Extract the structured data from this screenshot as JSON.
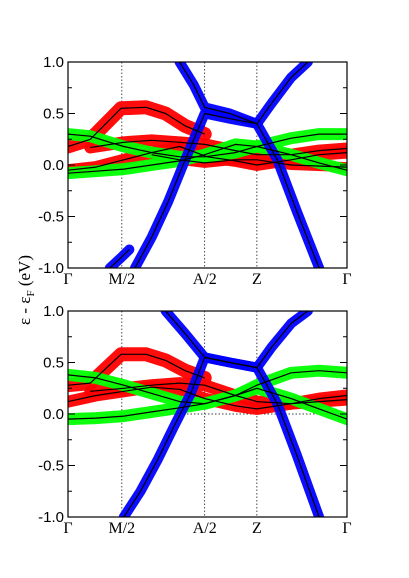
{
  "chart_data": [
    {
      "type": "line",
      "panel": "top",
      "ylabel_main": "ε - ε",
      "ylabel_sub": "F",
      "ylabel_unit": " (eV)",
      "ylim": [
        -1.0,
        1.0
      ],
      "yticks": [
        "1.0",
        "0.5",
        "0.0",
        "-0.5",
        "-1.0"
      ],
      "ytick_values": [
        1.0,
        0.5,
        0.0,
        -0.5,
        -1.0
      ],
      "kpoints": [
        "Γ",
        "M/2",
        "A/2",
        "Z",
        "Γ"
      ],
      "kpoint_positions": [
        0.0,
        0.193,
        0.49,
        0.677,
        1.0
      ],
      "grid": "dotted vertical lines at k-points, dotted horizontal line at 0",
      "colors": {
        "black": "#000000",
        "red": "#ff0000",
        "green": "#00ff00",
        "blue": "#0000ff"
      },
      "series": [
        {
          "color": "red",
          "width": 14,
          "x": [
            0,
            0.08,
            0.19,
            0.28,
            0.35,
            0.42,
            0.49
          ],
          "y": [
            0.18,
            0.25,
            0.55,
            0.56,
            0.5,
            0.38,
            0.3
          ]
        },
        {
          "color": "red",
          "width": 12,
          "x": [
            0,
            0.1,
            0.2,
            0.3,
            0.4,
            0.5,
            0.6,
            0.677,
            0.8,
            0.9,
            1.0
          ],
          "y": [
            -0.05,
            -0.02,
            0.05,
            0.12,
            0.18,
            0.08,
            0.04,
            0.0,
            0.05,
            0.1,
            0.12
          ]
        },
        {
          "color": "red",
          "width": 12,
          "x": [
            0.08,
            0.2,
            0.3,
            0.4,
            0.49,
            0.6,
            0.677,
            0.8,
            0.9,
            1.0
          ],
          "y": [
            0.17,
            0.22,
            0.24,
            0.22,
            0.2,
            0.14,
            0.1,
            0.1,
            0.14,
            0.16
          ]
        },
        {
          "color": "red",
          "width": 10,
          "x": [
            0.3,
            0.4,
            0.49,
            0.6,
            0.677,
            0.8,
            1.0
          ],
          "y": [
            0.1,
            0.05,
            0.02,
            0.05,
            0.05,
            0.0,
            -0.02
          ]
        },
        {
          "color": "green",
          "width": 12,
          "x": [
            0,
            0.08,
            0.15,
            0.2,
            0.3,
            0.4,
            0.49,
            0.6,
            0.677,
            0.8,
            0.9,
            1.0
          ],
          "y": [
            0.3,
            0.28,
            0.22,
            0.18,
            0.12,
            0.08,
            0.08,
            0.12,
            0.18,
            0.26,
            0.3,
            0.3
          ]
        },
        {
          "color": "green",
          "width": 12,
          "x": [
            0,
            0.1,
            0.2,
            0.3,
            0.4,
            0.49,
            0.6,
            0.677,
            0.8,
            0.9,
            1.0
          ],
          "y": [
            -0.08,
            -0.06,
            -0.04,
            0.0,
            0.04,
            0.1,
            0.2,
            0.18,
            0.1,
            0.02,
            -0.05
          ]
        },
        {
          "color": "blue",
          "width": 10,
          "x": [
            0.24,
            0.3,
            0.36,
            0.42,
            0.49,
            0.58,
            0.677
          ],
          "y": [
            -1.0,
            -0.7,
            -0.35,
            0.05,
            0.5,
            0.45,
            0.4
          ]
        },
        {
          "color": "blue",
          "width": 10,
          "x": [
            0.4,
            0.45,
            0.49,
            0.58,
            0.677,
            0.75,
            0.82,
            0.9
          ],
          "y": [
            1.0,
            0.78,
            0.56,
            0.5,
            0.4,
            0.05,
            -0.45,
            -1.0
          ]
        },
        {
          "color": "blue",
          "width": 10,
          "x": [
            0.677,
            0.73,
            0.8,
            0.86
          ],
          "y": [
            0.4,
            0.6,
            0.85,
            1.0
          ]
        },
        {
          "color": "blue",
          "width": 10,
          "x": [
            0.15,
            0.19,
            0.22
          ],
          "y": [
            -1.0,
            -0.9,
            -0.82
          ]
        }
      ]
    },
    {
      "type": "line",
      "panel": "bottom",
      "ylim": [
        -1.0,
        1.0
      ],
      "yticks": [
        "1.0",
        "0.5",
        "0.0",
        "-0.5",
        "-1.0"
      ],
      "ytick_values": [
        1.0,
        0.5,
        0.0,
        -0.5,
        -1.0
      ],
      "kpoints": [
        "Γ",
        "M/2",
        "A/2",
        "Z",
        "Γ"
      ],
      "kpoint_positions": [
        0.0,
        0.193,
        0.49,
        0.677,
        1.0
      ],
      "grid": "dotted vertical lines at k-points, dotted horizontal line at 0",
      "colors": {
        "black": "#000000",
        "red": "#ff0000",
        "green": "#00ff00",
        "blue": "#0000ff"
      },
      "series": [
        {
          "color": "red",
          "width": 14,
          "x": [
            0,
            0.08,
            0.19,
            0.28,
            0.35,
            0.42,
            0.49
          ],
          "y": [
            0.28,
            0.3,
            0.58,
            0.58,
            0.52,
            0.42,
            0.35
          ]
        },
        {
          "color": "red",
          "width": 12,
          "x": [
            0,
            0.1,
            0.2,
            0.3,
            0.4,
            0.49,
            0.6,
            0.677,
            0.8,
            0.9,
            1.0
          ],
          "y": [
            0.12,
            0.18,
            0.22,
            0.26,
            0.24,
            0.15,
            0.08,
            0.05,
            0.1,
            0.15,
            0.18
          ]
        },
        {
          "color": "red",
          "width": 12,
          "x": [
            0.08,
            0.2,
            0.3,
            0.4,
            0.49,
            0.6,
            0.677,
            0.8,
            0.9,
            1.0
          ],
          "y": [
            0.22,
            0.25,
            0.28,
            0.3,
            0.28,
            0.18,
            0.12,
            0.1,
            0.12,
            0.14
          ]
        },
        {
          "color": "green",
          "width": 12,
          "x": [
            0,
            0.1,
            0.2,
            0.3,
            0.4,
            0.49,
            0.6,
            0.677,
            0.8,
            0.9,
            1.0
          ],
          "y": [
            0.38,
            0.35,
            0.28,
            0.2,
            0.12,
            0.1,
            0.18,
            0.28,
            0.4,
            0.42,
            0.4
          ]
        },
        {
          "color": "green",
          "width": 12,
          "x": [
            0,
            0.1,
            0.2,
            0.3,
            0.4,
            0.49,
            0.6,
            0.677,
            0.8,
            0.9,
            1.0
          ],
          "y": [
            -0.05,
            -0.04,
            -0.02,
            0.02,
            0.06,
            0.1,
            0.18,
            0.25,
            0.15,
            0.05,
            -0.05
          ]
        },
        {
          "color": "blue",
          "width": 10,
          "x": [
            0.2,
            0.26,
            0.32,
            0.38,
            0.44,
            0.49,
            0.58,
            0.677
          ],
          "y": [
            -1.0,
            -0.75,
            -0.45,
            -0.12,
            0.2,
            0.55,
            0.5,
            0.45
          ]
        },
        {
          "color": "blue",
          "width": 10,
          "x": [
            0.35,
            0.42,
            0.49,
            0.58,
            0.677,
            0.75,
            0.82,
            0.9
          ],
          "y": [
            1.0,
            0.78,
            0.55,
            0.5,
            0.45,
            0.1,
            -0.4,
            -1.0
          ]
        },
        {
          "color": "blue",
          "width": 10,
          "x": [
            0.677,
            0.73,
            0.8,
            0.86
          ],
          "y": [
            0.45,
            0.65,
            0.88,
            1.0
          ]
        }
      ]
    }
  ]
}
